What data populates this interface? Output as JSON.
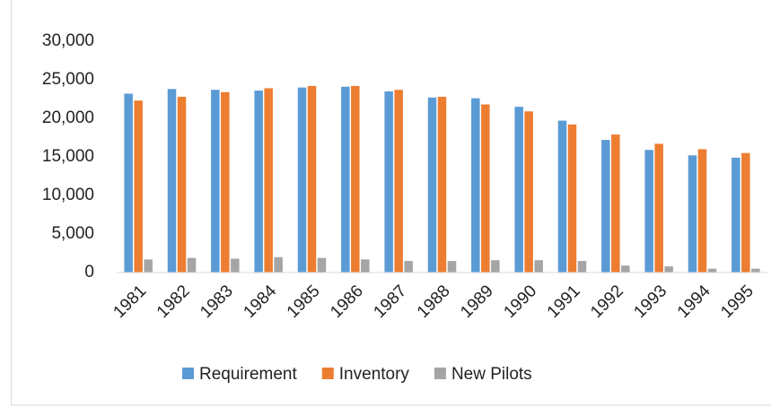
{
  "chart_data": {
    "type": "bar",
    "categories": [
      "1981",
      "1982",
      "1983",
      "1984",
      "1985",
      "1986",
      "1987",
      "1988",
      "1989",
      "1990",
      "1991",
      "1992",
      "1993",
      "1994",
      "1995"
    ],
    "series": [
      {
        "name": "Requirement",
        "color": "#5b9bd5",
        "values": [
          23200,
          23800,
          23700,
          23600,
          24000,
          24100,
          23500,
          22700,
          22600,
          21500,
          19700,
          17200,
          15900,
          15200,
          14900
        ]
      },
      {
        "name": "Inventory",
        "color": "#ed7d31",
        "values": [
          22300,
          22800,
          23400,
          23900,
          24200,
          24200,
          23700,
          22800,
          21800,
          20900,
          19200,
          17900,
          16700,
          16000,
          15500
        ]
      },
      {
        "name": "New Pilots",
        "color": "#a5a5a5",
        "values": [
          1700,
          1900,
          1800,
          2000,
          1900,
          1700,
          1500,
          1500,
          1600,
          1600,
          1500,
          900,
          800,
          500,
          500
        ]
      }
    ],
    "ylim": [
      0,
      30000
    ],
    "yticks": [
      0,
      {
        "value": 5000,
        "label": "5,000"
      },
      {
        "value": 10000,
        "label": "10,000"
      },
      {
        "value": 15000,
        "label": "15,000"
      },
      {
        "value": 20000,
        "label": "20,000"
      },
      {
        "value": 25000,
        "label": "25,000"
      },
      {
        "value": 30000,
        "label": "30,000"
      }
    ],
    "grid": false,
    "legend": "bottom"
  }
}
